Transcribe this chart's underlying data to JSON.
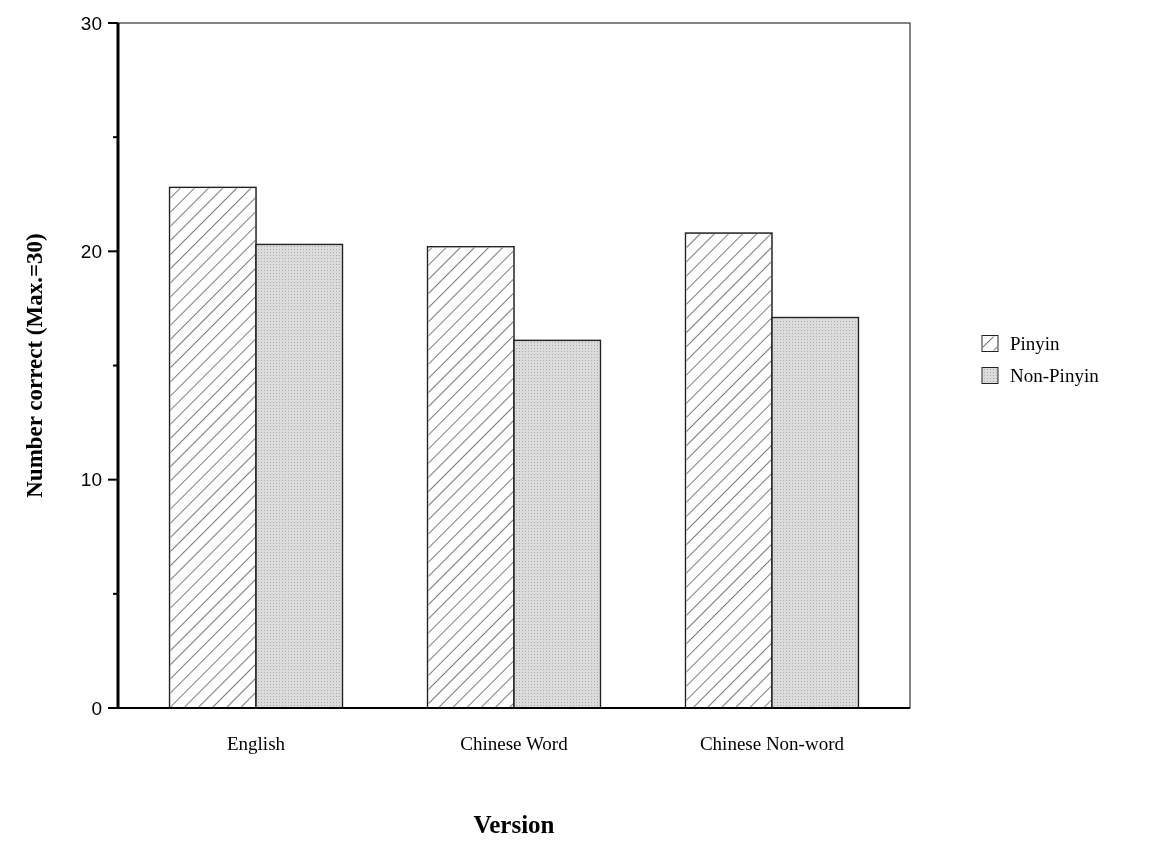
{
  "chart_data": {
    "type": "bar",
    "xlabel": "Version",
    "ylabel": "Number correct (Max.=30)",
    "categories": [
      "English",
      "Chinese Word",
      "Chinese Non-word"
    ],
    "series": [
      {
        "name": "Pinyin",
        "color": "#ffffff",
        "values": [
          22.8,
          20.2,
          20.8
        ]
      },
      {
        "name": "Non-Pinyin",
        "color": "#dcdcdc",
        "values": [
          20.3,
          16.1,
          17.1
        ]
      }
    ],
    "ylim": [
      0,
      30
    ],
    "yticks": [
      0,
      {
        "value": 5,
        "label": null
      },
      10,
      {
        "value": 15,
        "label": null
      },
      20,
      {
        "value": 25,
        "label": null
      },
      30
    ],
    "legend": "right"
  }
}
